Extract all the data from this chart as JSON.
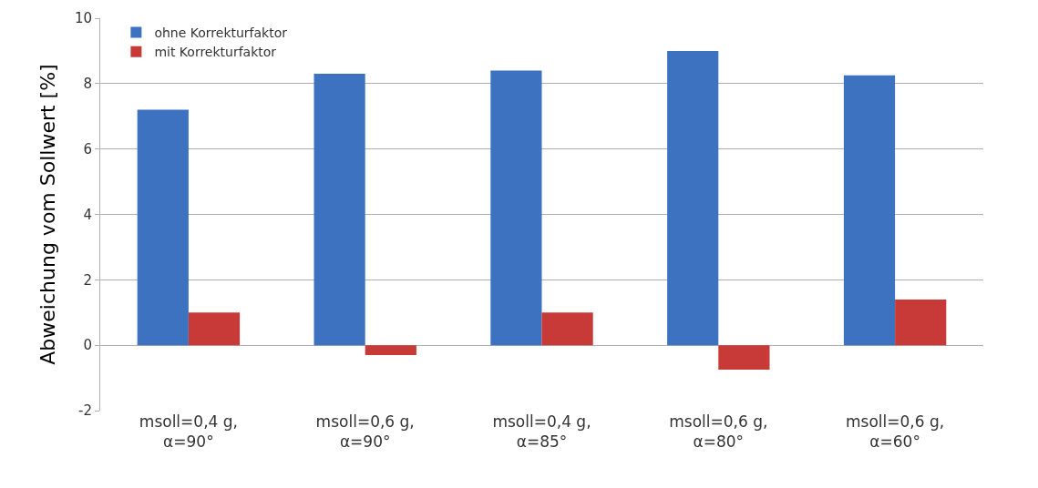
{
  "chart_data": {
    "type": "bar",
    "ylabel": "Abweichung vom Sollwert [%]",
    "categories": [
      "msoll=0,4 g,\nα=90°",
      "msoll=0,6 g,\nα=90°",
      "msoll=0,4 g,\nα=85°",
      "msoll=0,6 g,\nα=80°",
      "msoll=0,6 g,\nα=60°"
    ],
    "series": [
      {
        "name": "ohne Korrekturfaktor",
        "color": "#3c72bf",
        "values": [
          7.2,
          8.3,
          8.4,
          9.0,
          8.25
        ]
      },
      {
        "name": "mit Korrekturfaktor",
        "color": "#c83a37",
        "values": [
          1.0,
          -0.3,
          1.0,
          -0.75,
          1.4
        ]
      }
    ],
    "ylim": [
      -2,
      10
    ],
    "yticks": [
      -2,
      0,
      2,
      4,
      6,
      8,
      10
    ],
    "grid": "y",
    "legend": "top left"
  }
}
